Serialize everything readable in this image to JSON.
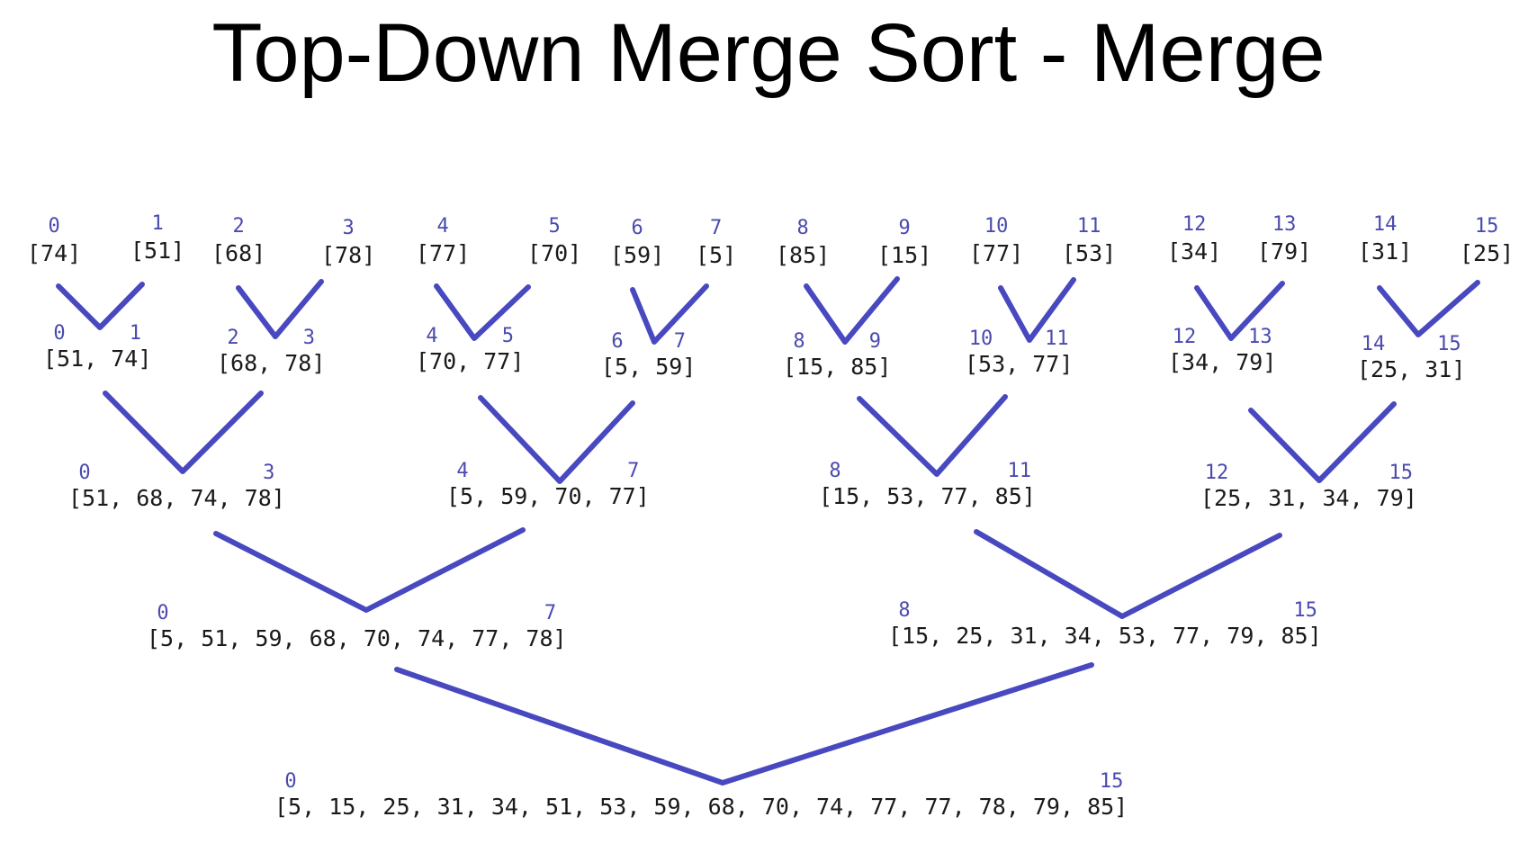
{
  "title": "Top-Down Merge Sort - Merge",
  "levels": [
    {
      "nodes": [
        {
          "lo": "0",
          "hi": "",
          "values": "[74]"
        },
        {
          "lo": "1",
          "hi": "",
          "values": "[51]"
        },
        {
          "lo": "2",
          "hi": "",
          "values": "[68]"
        },
        {
          "lo": "3",
          "hi": "",
          "values": "[78]"
        },
        {
          "lo": "4",
          "hi": "",
          "values": "[77]"
        },
        {
          "lo": "5",
          "hi": "",
          "values": "[70]"
        },
        {
          "lo": "6",
          "hi": "",
          "values": "[59]"
        },
        {
          "lo": "7",
          "hi": "",
          "values": "[5]"
        },
        {
          "lo": "8",
          "hi": "",
          "values": "[85]"
        },
        {
          "lo": "9",
          "hi": "",
          "values": "[15]"
        },
        {
          "lo": "10",
          "hi": "",
          "values": "[77]"
        },
        {
          "lo": "11",
          "hi": "",
          "values": "[53]"
        },
        {
          "lo": "12",
          "hi": "",
          "values": "[34]"
        },
        {
          "lo": "13",
          "hi": "",
          "values": "[79]"
        },
        {
          "lo": "14",
          "hi": "",
          "values": "[31]"
        },
        {
          "lo": "15",
          "hi": "",
          "values": "[25]"
        }
      ]
    },
    {
      "nodes": [
        {
          "lo": "0",
          "hi": "1",
          "values": "[51, 74]"
        },
        {
          "lo": "2",
          "hi": "3",
          "values": "[68, 78]"
        },
        {
          "lo": "4",
          "hi": "5",
          "values": "[70, 77]"
        },
        {
          "lo": "6",
          "hi": "7",
          "values": "[5, 59]"
        },
        {
          "lo": "8",
          "hi": "9",
          "values": "[15, 85]"
        },
        {
          "lo": "10",
          "hi": "11",
          "values": "[53, 77]"
        },
        {
          "lo": "12",
          "hi": "13",
          "values": "[34, 79]"
        },
        {
          "lo": "14",
          "hi": "15",
          "values": "[25, 31]"
        }
      ]
    },
    {
      "nodes": [
        {
          "lo": "0",
          "hi": "3",
          "values": "[51, 68, 74, 78]"
        },
        {
          "lo": "4",
          "hi": "7",
          "values": "[5, 59, 70, 77]"
        },
        {
          "lo": "8",
          "hi": "11",
          "values": "[15, 53, 77, 85]"
        },
        {
          "lo": "12",
          "hi": "15",
          "values": "[25, 31, 34, 79]"
        }
      ]
    },
    {
      "nodes": [
        {
          "lo": "0",
          "hi": "7",
          "values": "[5, 51, 59, 68, 70, 74, 77, 78]"
        },
        {
          "lo": "8",
          "hi": "15",
          "values": "[15, 25, 31, 34, 53, 77, 79, 85]"
        }
      ]
    },
    {
      "nodes": [
        {
          "lo": "0",
          "hi": "15",
          "values": "[5, 15, 25, 31, 34, 51, 53, 59, 68, 70, 74, 77, 77, 78, 79, 85]"
        }
      ]
    }
  ]
}
